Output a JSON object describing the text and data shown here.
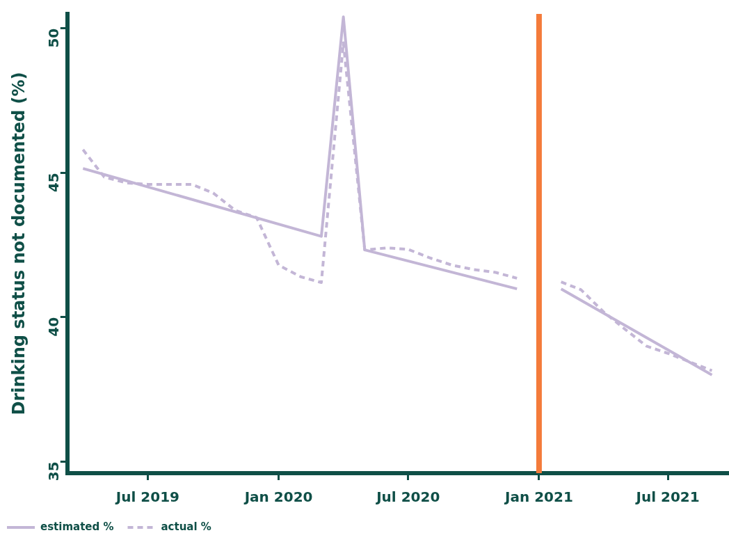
{
  "chart_data": {
    "type": "line",
    "ylabel": "Drinking status not documented (%)",
    "xlim": [
      "2019-03-10",
      "2021-09-25"
    ],
    "xticks": [
      {
        "value": "2019-07-01",
        "label": "Jul 2019"
      },
      {
        "value": "2020-01-01",
        "label": "Jan 2020"
      },
      {
        "value": "2020-07-01",
        "label": "Jul 2020"
      },
      {
        "value": "2021-01-01",
        "label": "Jan 2021"
      },
      {
        "value": "2021-07-01",
        "label": "Jul 2021"
      }
    ],
    "ylim": [
      34.6,
      50.5
    ],
    "yticks": [
      35,
      40,
      45,
      50
    ],
    "grid": false,
    "legend": "bottom left",
    "marker": "none",
    "ref_lines": [
      {
        "axis": "x",
        "value": "2021-01-01",
        "color": "#f47b3a"
      }
    ],
    "series": [
      {
        "name": "estimated %",
        "color": "#c3b6d6",
        "line_style": "solid",
        "x": [
          "2019-04-01",
          "2020-03-01",
          "2020-04-01",
          "2020-05-01",
          "2020-12-01",
          "2021-01-01",
          "2021-02-01",
          "2021-09-01"
        ],
        "values": [
          45.15,
          42.8,
          50.4,
          42.33,
          40.98,
          null,
          40.98,
          38.0
        ]
      },
      {
        "name": "actual %",
        "color": "#c3b6d6",
        "line_style": "dashed",
        "x": [
          "2019-04-01",
          "2019-05-01",
          "2019-06-01",
          "2019-07-01",
          "2019-08-01",
          "2019-09-01",
          "2019-10-01",
          "2019-11-01",
          "2019-12-01",
          "2020-01-01",
          "2020-02-01",
          "2020-03-01",
          "2020-04-01",
          "2020-05-01",
          "2020-06-01",
          "2020-07-01",
          "2020-08-01",
          "2020-09-01",
          "2020-10-01",
          "2020-11-01",
          "2020-12-01",
          "2021-01-01",
          "2021-02-01",
          "2021-03-01",
          "2021-04-01",
          "2021-05-01",
          "2021-06-01",
          "2021-07-01",
          "2021-08-01",
          "2021-09-01"
        ],
        "values": [
          45.8,
          44.85,
          44.65,
          44.6,
          44.6,
          44.6,
          44.3,
          43.7,
          43.45,
          41.8,
          41.4,
          41.2,
          49.5,
          42.33,
          42.4,
          42.35,
          42.05,
          41.8,
          41.65,
          41.55,
          41.35,
          null,
          41.22,
          40.95,
          40.2,
          39.6,
          39.0,
          38.75,
          38.45,
          38.15
        ]
      }
    ]
  }
}
